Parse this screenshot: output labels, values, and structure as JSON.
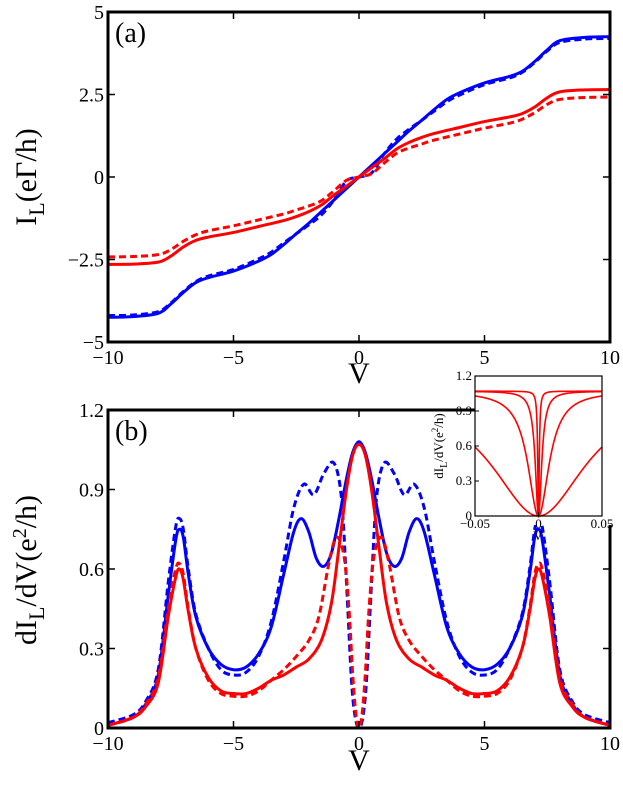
{
  "chart_data": [
    {
      "type": "line",
      "panel_label": "(a)",
      "xlabel": "V",
      "ylabel": {
        "main": "I",
        "sub": "L",
        "rest": "(eΓ/h)"
      },
      "xlim": [
        -10,
        10
      ],
      "ylim": [
        -5,
        5
      ],
      "xticks": [
        -10,
        -5,
        0,
        5,
        10
      ],
      "yticks": [
        -5,
        -2.5,
        0,
        2.5,
        5
      ],
      "ytick_labels": [
        "−5",
        "−2.5",
        "0",
        "2.5",
        "5"
      ],
      "xtick_labels": [
        "−10",
        "−5",
        "0",
        "5",
        "10"
      ],
      "series": [
        {
          "name": "blue solid",
          "color": "#0000ff",
          "dash": "solid",
          "x": [
            -10,
            -9,
            -8,
            -7.5,
            -7,
            -6.5,
            -6,
            -5,
            -4,
            -3.5,
            -3,
            -2.5,
            -2,
            -1.5,
            -1,
            -0.5,
            0,
            0.5,
            1,
            1.5,
            2,
            2.5,
            3,
            3.5,
            4,
            5,
            6,
            6.5,
            7,
            7.5,
            8,
            9,
            10
          ],
          "y": [
            -4.25,
            -4.23,
            -4.13,
            -3.85,
            -3.5,
            -3.2,
            -3.05,
            -2.85,
            -2.55,
            -2.35,
            -2.05,
            -1.72,
            -1.4,
            -1.05,
            -0.7,
            -0.35,
            0,
            0.35,
            0.7,
            1.05,
            1.4,
            1.72,
            2.05,
            2.35,
            2.55,
            2.85,
            3.05,
            3.2,
            3.5,
            3.85,
            4.13,
            4.23,
            4.25
          ]
        },
        {
          "name": "blue dashed",
          "color": "#0000ff",
          "dash": "dashed",
          "x": [
            -10,
            -9,
            -8,
            -7.5,
            -7,
            -6.5,
            -6,
            -5,
            -4,
            -3.5,
            -3,
            -2.5,
            -2,
            -1.5,
            -1,
            -0.5,
            0,
            0.5,
            1,
            1.5,
            2,
            2.5,
            3,
            3.5,
            4,
            5,
            6,
            6.5,
            7,
            7.5,
            8,
            9,
            10
          ],
          "y": [
            -4.2,
            -4.18,
            -4.08,
            -3.82,
            -3.47,
            -3.17,
            -3.0,
            -2.8,
            -2.48,
            -2.28,
            -2.0,
            -1.72,
            -1.45,
            -1.15,
            -0.7,
            -0.12,
            0,
            0.12,
            0.7,
            1.15,
            1.45,
            1.72,
            2.0,
            2.28,
            2.48,
            2.8,
            3.0,
            3.17,
            3.47,
            3.82,
            4.08,
            4.18,
            4.2
          ]
        },
        {
          "name": "red solid",
          "color": "#ff0000",
          "dash": "solid",
          "x": [
            -10,
            -9,
            -8,
            -7.5,
            -7,
            -6.5,
            -6,
            -5,
            -4,
            -3,
            -2.5,
            -2,
            -1.5,
            -1,
            -0.5,
            0,
            0.5,
            1,
            1.5,
            2,
            2.5,
            3,
            4,
            5,
            6,
            6.5,
            7,
            7.5,
            8,
            9,
            10
          ],
          "y": [
            -2.65,
            -2.64,
            -2.58,
            -2.4,
            -2.12,
            -1.92,
            -1.82,
            -1.68,
            -1.5,
            -1.32,
            -1.2,
            -1.05,
            -0.85,
            -0.55,
            -0.28,
            0,
            0.28,
            0.55,
            0.85,
            1.05,
            1.2,
            1.32,
            1.5,
            1.68,
            1.82,
            1.92,
            2.12,
            2.4,
            2.58,
            2.64,
            2.65
          ]
        },
        {
          "name": "red dashed",
          "color": "#ff0000",
          "dash": "dashed",
          "x": [
            -10,
            -9,
            -8,
            -7.5,
            -7,
            -6.5,
            -6,
            -5,
            -4,
            -3,
            -2.5,
            -2,
            -1.5,
            -1,
            -0.5,
            0,
            0.5,
            1,
            1.5,
            2,
            2.5,
            3,
            4,
            5,
            6,
            6.5,
            7,
            7.5,
            8,
            9,
            10
          ],
          "y": [
            -2.42,
            -2.41,
            -2.35,
            -2.2,
            -1.95,
            -1.75,
            -1.63,
            -1.48,
            -1.3,
            -1.12,
            -1.0,
            -0.88,
            -0.72,
            -0.42,
            -0.1,
            0,
            0.1,
            0.42,
            0.72,
            0.88,
            1.0,
            1.12,
            1.3,
            1.48,
            1.63,
            1.75,
            1.95,
            2.2,
            2.35,
            2.41,
            2.42
          ]
        }
      ]
    },
    {
      "type": "line",
      "panel_label": "(b)",
      "xlabel": "V",
      "ylabel": {
        "main": "dI",
        "sub": "L",
        "rest": "/dV(e",
        "sup": "2",
        "tail": "/h)"
      },
      "xlim": [
        -10,
        10
      ],
      "ylim": [
        0,
        1.2
      ],
      "xticks": [
        -10,
        -5,
        0,
        5,
        10
      ],
      "yticks": [
        0,
        0.3,
        0.6,
        0.9,
        1.2
      ],
      "ytick_labels": [
        "0",
        "0.3",
        "0.6",
        "0.9",
        "1.2"
      ],
      "xtick_labels": [
        "−10",
        "−5",
        "0",
        "5",
        "10"
      ],
      "series": [
        {
          "name": "blue solid",
          "color": "#0000ff",
          "dash": "solid",
          "x": [
            -10,
            -9,
            -8.5,
            -8,
            -7.6,
            -7.3,
            -7.15,
            -7.0,
            -6.8,
            -6.5,
            -6,
            -5.5,
            -5,
            -4.5,
            -4,
            -3.5,
            -3,
            -2.6,
            -2.3,
            -2.0,
            -1.7,
            -1.4,
            -1.1,
            -0.8,
            -0.5,
            -0.25,
            0,
            0.25,
            0.5,
            0.8,
            1.1,
            1.4,
            1.7,
            2.0,
            2.3,
            2.6,
            3,
            3.5,
            4,
            4.5,
            5,
            5.5,
            6,
            6.5,
            6.8,
            7.0,
            7.15,
            7.3,
            7.6,
            8,
            8.5,
            9,
            10
          ],
          "y": [
            0.01,
            0.04,
            0.09,
            0.2,
            0.5,
            0.71,
            0.75,
            0.72,
            0.58,
            0.42,
            0.3,
            0.24,
            0.22,
            0.23,
            0.28,
            0.38,
            0.58,
            0.74,
            0.79,
            0.74,
            0.64,
            0.61,
            0.66,
            0.79,
            0.94,
            1.04,
            1.08,
            1.04,
            0.94,
            0.79,
            0.66,
            0.61,
            0.64,
            0.74,
            0.79,
            0.74,
            0.58,
            0.38,
            0.28,
            0.23,
            0.22,
            0.24,
            0.3,
            0.42,
            0.58,
            0.72,
            0.75,
            0.71,
            0.5,
            0.2,
            0.09,
            0.04,
            0.01
          ]
        },
        {
          "name": "blue dashed",
          "color": "#0000ff",
          "dash": "dashed",
          "x": [
            -10,
            -9,
            -8.5,
            -8,
            -7.6,
            -7.3,
            -7.15,
            -7.0,
            -6.8,
            -6.5,
            -6,
            -5.5,
            -5,
            -4.5,
            -4,
            -3.5,
            -3,
            -2.6,
            -2.2,
            -1.8,
            -1.4,
            -1.0,
            -0.7,
            -0.5,
            -0.3,
            -0.15,
            0,
            0.15,
            0.3,
            0.5,
            0.7,
            1.0,
            1.4,
            1.8,
            2.2,
            2.6,
            3,
            3.5,
            4,
            4.5,
            5,
            5.5,
            6,
            6.5,
            6.8,
            7.0,
            7.15,
            7.3,
            7.6,
            8,
            8.5,
            9,
            10
          ],
          "y": [
            0.02,
            0.05,
            0.1,
            0.22,
            0.55,
            0.76,
            0.79,
            0.75,
            0.6,
            0.43,
            0.3,
            0.22,
            0.2,
            0.21,
            0.27,
            0.4,
            0.63,
            0.83,
            0.92,
            0.88,
            0.96,
            1.0,
            0.87,
            0.55,
            0.18,
            0.04,
            0.0,
            0.04,
            0.18,
            0.55,
            0.87,
            1.0,
            0.96,
            0.88,
            0.92,
            0.83,
            0.63,
            0.4,
            0.27,
            0.21,
            0.2,
            0.22,
            0.3,
            0.43,
            0.6,
            0.75,
            0.79,
            0.76,
            0.55,
            0.22,
            0.1,
            0.05,
            0.02
          ]
        },
        {
          "name": "red solid",
          "color": "#ff0000",
          "dash": "solid",
          "x": [
            -10,
            -9,
            -8.5,
            -8,
            -7.6,
            -7.3,
            -7.15,
            -7.0,
            -6.8,
            -6.5,
            -6,
            -5.5,
            -5,
            -4.5,
            -4,
            -3.5,
            -3,
            -2.5,
            -2.0,
            -1.5,
            -1.1,
            -0.8,
            -0.5,
            -0.25,
            0,
            0.25,
            0.5,
            0.8,
            1.1,
            1.5,
            2.0,
            2.5,
            3,
            3.5,
            4,
            4.5,
            5,
            5.5,
            6,
            6.5,
            6.8,
            7.0,
            7.15,
            7.3,
            7.6,
            8,
            8.5,
            9,
            10
          ],
          "y": [
            0.01,
            0.04,
            0.08,
            0.17,
            0.42,
            0.57,
            0.6,
            0.56,
            0.44,
            0.3,
            0.19,
            0.14,
            0.13,
            0.13,
            0.15,
            0.18,
            0.2,
            0.23,
            0.26,
            0.33,
            0.47,
            0.68,
            0.9,
            1.03,
            1.07,
            1.03,
            0.9,
            0.68,
            0.47,
            0.33,
            0.26,
            0.23,
            0.2,
            0.18,
            0.15,
            0.13,
            0.13,
            0.14,
            0.19,
            0.3,
            0.44,
            0.56,
            0.6,
            0.57,
            0.42,
            0.17,
            0.08,
            0.04,
            0.01
          ]
        },
        {
          "name": "red dashed",
          "color": "#ff0000",
          "dash": "dashed",
          "x": [
            -10,
            -9,
            -8.5,
            -8,
            -7.6,
            -7.3,
            -7.15,
            -7.0,
            -6.8,
            -6.5,
            -6,
            -5.5,
            -5,
            -4.5,
            -4,
            -3.5,
            -3,
            -2.5,
            -2.0,
            -1.6,
            -1.2,
            -0.9,
            -0.6,
            -0.4,
            -0.25,
            -0.12,
            0,
            0.12,
            0.25,
            0.4,
            0.6,
            0.9,
            1.2,
            1.6,
            2.0,
            2.5,
            3,
            3.5,
            4,
            4.5,
            5,
            5.5,
            6,
            6.5,
            6.8,
            7.0,
            7.15,
            7.3,
            7.6,
            8,
            8.5,
            9,
            10
          ],
          "y": [
            0.01,
            0.04,
            0.09,
            0.19,
            0.45,
            0.6,
            0.62,
            0.58,
            0.45,
            0.3,
            0.18,
            0.13,
            0.12,
            0.12,
            0.14,
            0.18,
            0.22,
            0.27,
            0.33,
            0.42,
            0.62,
            0.72,
            0.65,
            0.45,
            0.2,
            0.05,
            0.0,
            0.05,
            0.2,
            0.45,
            0.65,
            0.72,
            0.62,
            0.42,
            0.33,
            0.27,
            0.22,
            0.18,
            0.14,
            0.12,
            0.12,
            0.13,
            0.18,
            0.3,
            0.45,
            0.58,
            0.62,
            0.6,
            0.45,
            0.19,
            0.09,
            0.04,
            0.01
          ]
        }
      ],
      "inset": {
        "type": "line",
        "xlabel": "V",
        "ylabel": "dI_L/dV(e^2/h)",
        "ylabel_parts": {
          "main": "dI",
          "sub": "L",
          "rest": "/dV(e",
          "sup": "2",
          "tail": "/h)"
        },
        "xlim": [
          -0.05,
          0.05
        ],
        "ylim": [
          0,
          1.2
        ],
        "xticks": [
          -0.05,
          0,
          0.05
        ],
        "xtick_labels": [
          "−0.05",
          "0",
          "0.05"
        ],
        "yticks": [
          0,
          0.3,
          0.6,
          0.9,
          1.2
        ],
        "ytick_labels": [
          "0",
          "0.3",
          "0.6",
          "0.9",
          "1.2"
        ],
        "series": [
          {
            "name": "red width 1",
            "color": "#ff0000",
            "dash": "solid",
            "width_param": 0.0007
          },
          {
            "name": "red width 2",
            "color": "#ff0000",
            "dash": "solid",
            "width_param": 0.003
          },
          {
            "name": "red width 3",
            "color": "#ff0000",
            "dash": "solid",
            "width_param": 0.01
          },
          {
            "name": "red width 4",
            "color": "#ff0000",
            "dash": "solid",
            "width_param": 0.045
          }
        ],
        "max_value": 1.07
      }
    }
  ]
}
